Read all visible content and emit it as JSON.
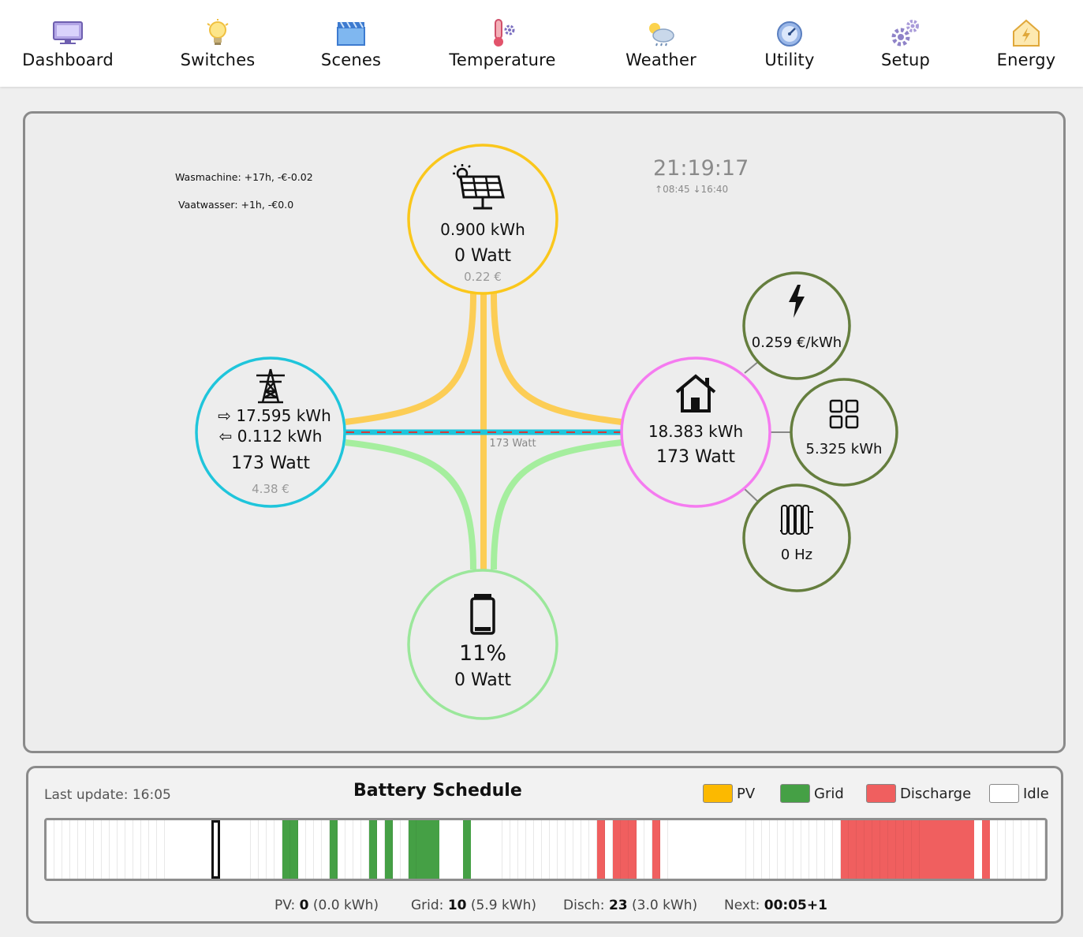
{
  "nav": {
    "items": [
      {
        "label": "Dashboard",
        "icon": "monitor-icon"
      },
      {
        "label": "Switches",
        "icon": "lightbulb-icon"
      },
      {
        "label": "Scenes",
        "icon": "clapperboard-icon"
      },
      {
        "label": "Temperature",
        "icon": "thermometer-icon"
      },
      {
        "label": "Weather",
        "icon": "cloud-sun-icon"
      },
      {
        "label": "Utility",
        "icon": "gauge-icon"
      },
      {
        "label": "Setup",
        "icon": "gears-icon"
      },
      {
        "label": "Energy",
        "icon": "house-energy-icon"
      }
    ]
  },
  "notifications": [
    "Wasmachine: +17h, -€-0.02",
    "Vaatwasser: +1h, -€0.0"
  ],
  "clock": {
    "time": "21:19:17",
    "sunrise": "08:45",
    "sunset": "16:40"
  },
  "solar": {
    "energy": "0.900 kWh",
    "power": "0 Watt",
    "cost": "0.22 €",
    "color": "#fac71c"
  },
  "grid": {
    "import": "17.595 kWh",
    "export": "0.112 kWh",
    "power": "173 Watt",
    "cost": "4.38 €",
    "flow_label": "173 Watt",
    "color": "#1fc5db"
  },
  "home": {
    "energy": "18.383 kWh",
    "power": "173 Watt",
    "color": "#f57bf0"
  },
  "battery": {
    "soc": "11%",
    "power": "0 Watt",
    "color": "#9be79b"
  },
  "extras": [
    {
      "value": "0.259 €/kWh",
      "icon": "lightning-icon"
    },
    {
      "value": "5.325 kWh",
      "icon": "grid-apps-icon"
    },
    {
      "value": "0 Hz",
      "icon": "radiator-icon"
    }
  ],
  "schedule": {
    "title": "Battery Schedule",
    "last_update": "Last update: 16:05",
    "legend": [
      {
        "label": "PV",
        "color": "#fcb900"
      },
      {
        "label": "Grid",
        "color": "#45a045"
      },
      {
        "label": "Discharge",
        "color": "#f05f5f"
      },
      {
        "label": "Idle",
        "color": "#ffffff"
      }
    ],
    "slot_count": 127,
    "current_slot": 21,
    "slots": "IIIIIIIIIIIIIIIIIIIIIIIIIIIIIIGGIIIIGIIIIGIGIIGGGGIIIGIIIIIIIIIIIIIIIIDIDDDIIDIIIIIIIIIIIIIIIIIIIIIIIDDDDDDDDDDDDDDDDDIDIIIIIIIIIIIIIIII",
    "stats": {
      "pv_label": "PV:",
      "pv_count": "0",
      "pv_kwh": "(0.0 kWh)",
      "grid_label": "Grid:",
      "grid_count": "10",
      "grid_kwh": "(5.9 kWh)",
      "disch_label": "Disch:",
      "disch_count": "23",
      "disch_kwh": "(3.0 kWh)",
      "next_label": "Next:",
      "next_value": "00:05+1"
    }
  }
}
